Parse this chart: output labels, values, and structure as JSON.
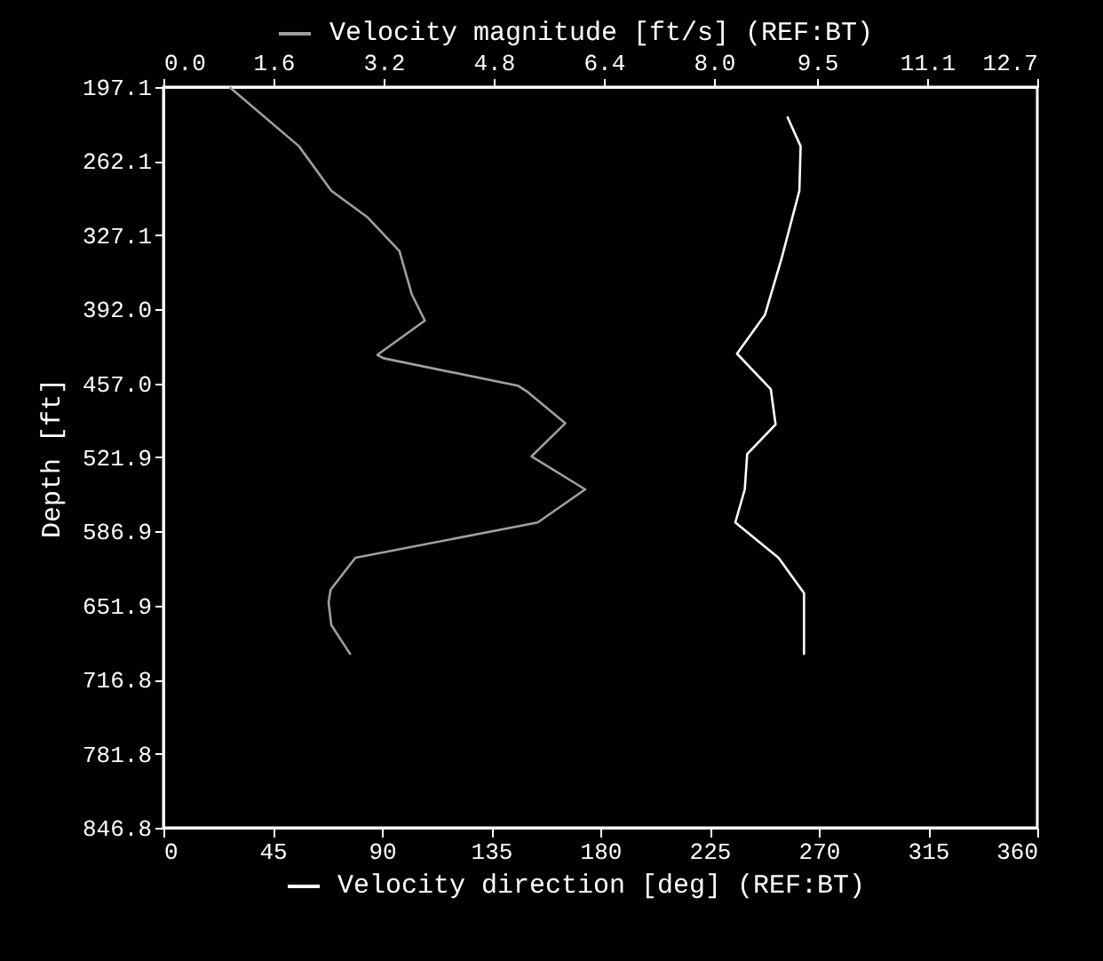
{
  "chart_data": {
    "type": "line",
    "xlabel": "Velocity direction [deg] (REF:BT)",
    "x2label": "Velocity magnitude [ft/s] (REF:BT)",
    "ylabel": "Depth [ft]",
    "xlim": [
      0,
      360
    ],
    "xticks": [
      0,
      45,
      90,
      135,
      180,
      225,
      270,
      315,
      360
    ],
    "x2lim": [
      0,
      12.7
    ],
    "x2ticks": [
      {
        "value": 0,
        "label": "0.0"
      },
      1.6,
      3.2,
      4.8,
      6.4,
      {
        "value": 8,
        "label": "8.0"
      },
      9.5,
      11.1,
      12.7
    ],
    "ylim": [
      846.8,
      197.1
    ],
    "yticks": [
      197.1,
      262.1,
      327.1,
      {
        "value": 392,
        "label": "392.0"
      },
      {
        "value": 457,
        "label": "457.0"
      },
      521.9,
      586.9,
      651.9,
      716.8,
      781.8,
      846.8
    ],
    "grid": false,
    "series": [
      {
        "color": "#a0a0a0",
        "axis": "x2",
        "x": [
          0.96,
          1.97,
          2.44,
          2.96,
          3.43,
          3.61,
          3.8,
          3.11,
          3.2,
          5.15,
          5.28,
          5.84,
          5.35,
          6.13,
          5.44,
          2.79,
          2.43,
          2.4,
          2.44,
          2.72
        ],
        "values": [
          197.1,
          249,
          288,
          311,
          341,
          379,
          402,
          432,
          435,
          459,
          464,
          492,
          521,
          550,
          579,
          610,
          638,
          649,
          669,
          695
        ]
      },
      {
        "color": "#ffffff",
        "x": [
          257,
          262.5,
          262,
          254.6,
          247.8,
          236.3,
          250.2,
          252.2,
          240.5,
          239.5,
          235.6,
          253.4,
          263.9,
          263.9
        ],
        "values": [
          223,
          249,
          288,
          348,
          397,
          431,
          462,
          493,
          519,
          550,
          579,
          610,
          641,
          695
        ]
      }
    ]
  }
}
